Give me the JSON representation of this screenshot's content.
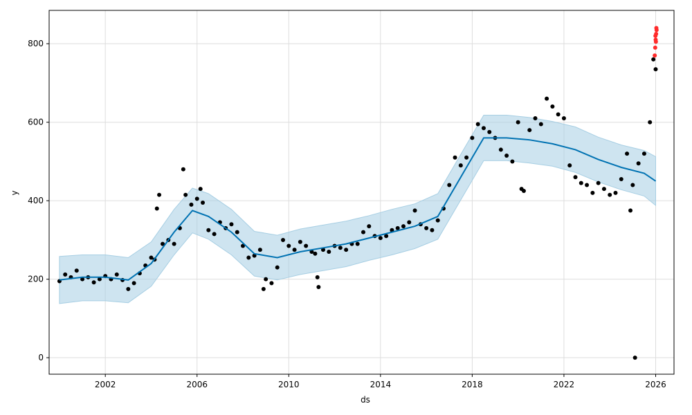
{
  "chart_data": {
    "type": "scatter",
    "title": "",
    "xlabel": "ds",
    "ylabel": "y",
    "x_domain": [
      1999.55,
      2026.8
    ],
    "ylim": [
      -42,
      885
    ],
    "x_ticks": [
      2002,
      2006,
      2010,
      2014,
      2018,
      2022,
      2026
    ],
    "y_ticks": [
      0,
      200,
      400,
      600,
      800
    ],
    "grid": true,
    "legend": "none",
    "colors": {
      "observed": "#000000",
      "outlier": "#ff2b2b",
      "forecast": "#0072b2",
      "interval": "#a6cee3"
    },
    "series": [
      {
        "role": "observed",
        "points": [
          [
            2000.0,
            195
          ],
          [
            2000.25,
            212
          ],
          [
            2000.5,
            205
          ],
          [
            2000.75,
            222
          ],
          [
            2001.0,
            200
          ],
          [
            2001.25,
            205
          ],
          [
            2001.5,
            192
          ],
          [
            2001.75,
            200
          ],
          [
            2002.0,
            208
          ],
          [
            2002.25,
            200
          ],
          [
            2002.5,
            212
          ],
          [
            2002.75,
            198
          ],
          [
            2003.0,
            175
          ],
          [
            2003.25,
            190
          ],
          [
            2003.5,
            215
          ],
          [
            2003.75,
            235
          ],
          [
            2004.0,
            255
          ],
          [
            2004.15,
            250
          ],
          [
            2004.25,
            380
          ],
          [
            2004.35,
            415
          ],
          [
            2004.5,
            290
          ],
          [
            2004.75,
            300
          ],
          [
            2005.0,
            290
          ],
          [
            2005.25,
            330
          ],
          [
            2005.4,
            480
          ],
          [
            2005.5,
            415
          ],
          [
            2005.75,
            390
          ],
          [
            2006.0,
            405
          ],
          [
            2006.15,
            430
          ],
          [
            2006.25,
            395
          ],
          [
            2006.5,
            325
          ],
          [
            2006.75,
            315
          ],
          [
            2007.0,
            345
          ],
          [
            2007.25,
            330
          ],
          [
            2007.5,
            340
          ],
          [
            2007.75,
            320
          ],
          [
            2008.0,
            285
          ],
          [
            2008.25,
            255
          ],
          [
            2008.5,
            260
          ],
          [
            2008.75,
            275
          ],
          [
            2008.9,
            175
          ],
          [
            2009.0,
            200
          ],
          [
            2009.25,
            190
          ],
          [
            2009.5,
            230
          ],
          [
            2009.75,
            300
          ],
          [
            2010.0,
            285
          ],
          [
            2010.25,
            275
          ],
          [
            2010.5,
            295
          ],
          [
            2010.75,
            285
          ],
          [
            2011.0,
            270
          ],
          [
            2011.15,
            265
          ],
          [
            2011.25,
            205
          ],
          [
            2011.3,
            180
          ],
          [
            2011.5,
            275
          ],
          [
            2011.75,
            270
          ],
          [
            2012.0,
            285
          ],
          [
            2012.25,
            280
          ],
          [
            2012.5,
            275
          ],
          [
            2012.75,
            290
          ],
          [
            2013.0,
            290
          ],
          [
            2013.25,
            320
          ],
          [
            2013.5,
            335
          ],
          [
            2013.75,
            310
          ],
          [
            2014.0,
            305
          ],
          [
            2014.25,
            310
          ],
          [
            2014.5,
            325
          ],
          [
            2014.75,
            330
          ],
          [
            2015.0,
            335
          ],
          [
            2015.25,
            345
          ],
          [
            2015.5,
            375
          ],
          [
            2015.75,
            340
          ],
          [
            2016.0,
            330
          ],
          [
            2016.25,
            325
          ],
          [
            2016.5,
            350
          ],
          [
            2016.75,
            380
          ],
          [
            2017.0,
            440
          ],
          [
            2017.25,
            510
          ],
          [
            2017.5,
            490
          ],
          [
            2017.75,
            510
          ],
          [
            2018.0,
            560
          ],
          [
            2018.25,
            595
          ],
          [
            2018.5,
            585
          ],
          [
            2018.75,
            575
          ],
          [
            2019.0,
            560
          ],
          [
            2019.25,
            530
          ],
          [
            2019.5,
            515
          ],
          [
            2019.75,
            500
          ],
          [
            2020.0,
            600
          ],
          [
            2020.15,
            430
          ],
          [
            2020.25,
            425
          ],
          [
            2020.5,
            580
          ],
          [
            2020.75,
            610
          ],
          [
            2021.0,
            595
          ],
          [
            2021.25,
            660
          ],
          [
            2021.5,
            640
          ],
          [
            2021.75,
            620
          ],
          [
            2022.0,
            610
          ],
          [
            2022.25,
            490
          ],
          [
            2022.5,
            460
          ],
          [
            2022.75,
            445
          ],
          [
            2023.0,
            440
          ],
          [
            2023.25,
            420
          ],
          [
            2023.5,
            445
          ],
          [
            2023.75,
            430
          ],
          [
            2024.0,
            415
          ],
          [
            2024.25,
            420
          ],
          [
            2024.5,
            455
          ],
          [
            2024.75,
            520
          ],
          [
            2024.9,
            375
          ],
          [
            2025.0,
            440
          ],
          [
            2025.1,
            0
          ],
          [
            2025.25,
            495
          ],
          [
            2025.5,
            520
          ],
          [
            2025.75,
            600
          ],
          [
            2025.9,
            760
          ],
          [
            2026.0,
            735
          ]
        ]
      },
      {
        "role": "outlier",
        "points": [
          [
            2025.96,
            770
          ],
          [
            2025.98,
            790
          ],
          [
            2026.0,
            810
          ],
          [
            2026.02,
            825
          ],
          [
            2026.03,
            840
          ],
          [
            2026.01,
            805
          ],
          [
            2025.99,
            820
          ],
          [
            2026.04,
            835
          ]
        ]
      },
      {
        "role": "forecast",
        "points": [
          [
            2000.0,
            198
          ],
          [
            2001.0,
            205
          ],
          [
            2002.0,
            205
          ],
          [
            2003.0,
            198
          ],
          [
            2004.0,
            240
          ],
          [
            2005.0,
            320
          ],
          [
            2005.8,
            375
          ],
          [
            2006.5,
            360
          ],
          [
            2007.5,
            320
          ],
          [
            2008.5,
            265
          ],
          [
            2009.5,
            255
          ],
          [
            2010.5,
            270
          ],
          [
            2011.5,
            280
          ],
          [
            2012.5,
            290
          ],
          [
            2013.5,
            305
          ],
          [
            2014.5,
            320
          ],
          [
            2015.5,
            335
          ],
          [
            2016.5,
            360
          ],
          [
            2017.5,
            460
          ],
          [
            2018.5,
            560
          ],
          [
            2019.5,
            560
          ],
          [
            2020.5,
            555
          ],
          [
            2021.5,
            545
          ],
          [
            2022.5,
            530
          ],
          [
            2023.5,
            505
          ],
          [
            2024.5,
            485
          ],
          [
            2025.5,
            470
          ],
          [
            2026.0,
            450
          ]
        ]
      },
      {
        "role": "interval",
        "upper": [
          [
            2000.0,
            258
          ],
          [
            2001.0,
            262
          ],
          [
            2002.0,
            262
          ],
          [
            2003.0,
            255
          ],
          [
            2004.0,
            295
          ],
          [
            2005.0,
            378
          ],
          [
            2005.8,
            432
          ],
          [
            2006.5,
            418
          ],
          [
            2007.5,
            378
          ],
          [
            2008.5,
            322
          ],
          [
            2009.5,
            312
          ],
          [
            2010.5,
            328
          ],
          [
            2011.5,
            338
          ],
          [
            2012.5,
            348
          ],
          [
            2013.5,
            362
          ],
          [
            2014.5,
            378
          ],
          [
            2015.5,
            392
          ],
          [
            2016.5,
            418
          ],
          [
            2017.5,
            518
          ],
          [
            2018.5,
            618
          ],
          [
            2019.5,
            618
          ],
          [
            2020.5,
            612
          ],
          [
            2021.5,
            602
          ],
          [
            2022.5,
            588
          ],
          [
            2023.5,
            562
          ],
          [
            2024.5,
            542
          ],
          [
            2025.5,
            528
          ],
          [
            2026.0,
            512
          ]
        ],
        "lower": [
          [
            2000.0,
            138
          ],
          [
            2001.0,
            145
          ],
          [
            2002.0,
            145
          ],
          [
            2003.0,
            140
          ],
          [
            2004.0,
            182
          ],
          [
            2005.0,
            262
          ],
          [
            2005.8,
            318
          ],
          [
            2006.5,
            302
          ],
          [
            2007.5,
            262
          ],
          [
            2008.5,
            208
          ],
          [
            2009.5,
            198
          ],
          [
            2010.5,
            212
          ],
          [
            2011.5,
            222
          ],
          [
            2012.5,
            232
          ],
          [
            2013.5,
            248
          ],
          [
            2014.5,
            262
          ],
          [
            2015.5,
            278
          ],
          [
            2016.5,
            302
          ],
          [
            2017.5,
            402
          ],
          [
            2018.5,
            502
          ],
          [
            2019.5,
            502
          ],
          [
            2020.5,
            496
          ],
          [
            2021.5,
            488
          ],
          [
            2022.5,
            472
          ],
          [
            2023.5,
            448
          ],
          [
            2024.5,
            428
          ],
          [
            2025.5,
            412
          ],
          [
            2026.0,
            388
          ]
        ]
      }
    ]
  }
}
